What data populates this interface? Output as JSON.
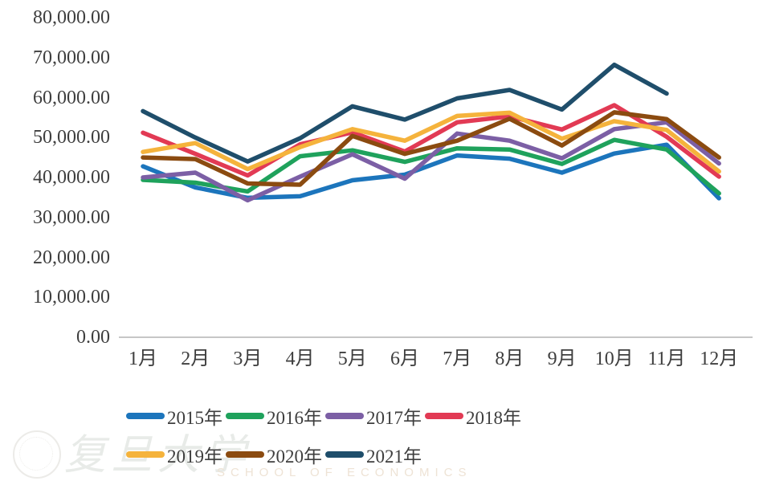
{
  "chart_data": {
    "type": "line",
    "title": "",
    "xlabel": "",
    "ylabel": "",
    "ylim": [
      0,
      80000
    ],
    "grid": false,
    "legend_position": "bottom",
    "axis_line_color": "#c6c6c6",
    "label_color": "#3e3e3e",
    "y_ticks": [
      {
        "label": "80,000.00",
        "value": 80000
      },
      {
        "label": "70,000.00",
        "value": 70000
      },
      {
        "label": "60,000.00",
        "value": 60000
      },
      {
        "label": "50,000.00",
        "value": 50000
      },
      {
        "label": "40,000.00",
        "value": 40000
      },
      {
        "label": "30,000.00",
        "value": 30000
      },
      {
        "label": "20,000.00",
        "value": 20000
      },
      {
        "label": "10,000.00",
        "value": 10000
      },
      {
        "label": "0.00",
        "value": 0
      }
    ],
    "categories": [
      "1月",
      "2月",
      "3月",
      "4月",
      "5月",
      "6月",
      "7月",
      "8月",
      "9月",
      "10月",
      "11月",
      "12月"
    ],
    "series": [
      {
        "name": "2015年",
        "color": "#1c75bc",
        "values": [
          42800,
          37500,
          34900,
          35300,
          39300,
          40700,
          45500,
          44700,
          41200,
          46000,
          48200,
          34800
        ]
      },
      {
        "name": "2016年",
        "color": "#1fa25c",
        "values": [
          39400,
          38700,
          36500,
          45300,
          46800,
          43900,
          47300,
          47000,
          43400,
          49400,
          47000,
          36000
        ]
      },
      {
        "name": "2017年",
        "color": "#7c5fa5",
        "values": [
          40000,
          41200,
          34300,
          40200,
          45800,
          39700,
          51000,
          49200,
          44800,
          52100,
          53800,
          43500
        ]
      },
      {
        "name": "2018年",
        "color": "#e23a54",
        "values": [
          51200,
          45900,
          40500,
          48300,
          51300,
          46500,
          53800,
          55300,
          52000,
          58100,
          50200,
          40200
        ]
      },
      {
        "name": "2019年",
        "color": "#f5b33c",
        "values": [
          46400,
          48600,
          42100,
          47600,
          52100,
          49200,
          55400,
          56200,
          49700,
          54100,
          51900,
          41500
        ]
      },
      {
        "name": "2020年",
        "color": "#8b4b10",
        "values": [
          45000,
          44600,
          38500,
          38200,
          50400,
          45900,
          49200,
          54700,
          48000,
          56300,
          54600,
          45000
        ]
      },
      {
        "name": "2021年",
        "color": "#1f4e6b",
        "values": [
          56600,
          50000,
          44000,
          49800,
          57800,
          54500,
          59800,
          61900,
          57000,
          68200,
          61000,
          null
        ]
      }
    ]
  },
  "watermark": {
    "text_cn": "复旦大学",
    "text_en": "SCHOOL OF ECONOMICS"
  }
}
